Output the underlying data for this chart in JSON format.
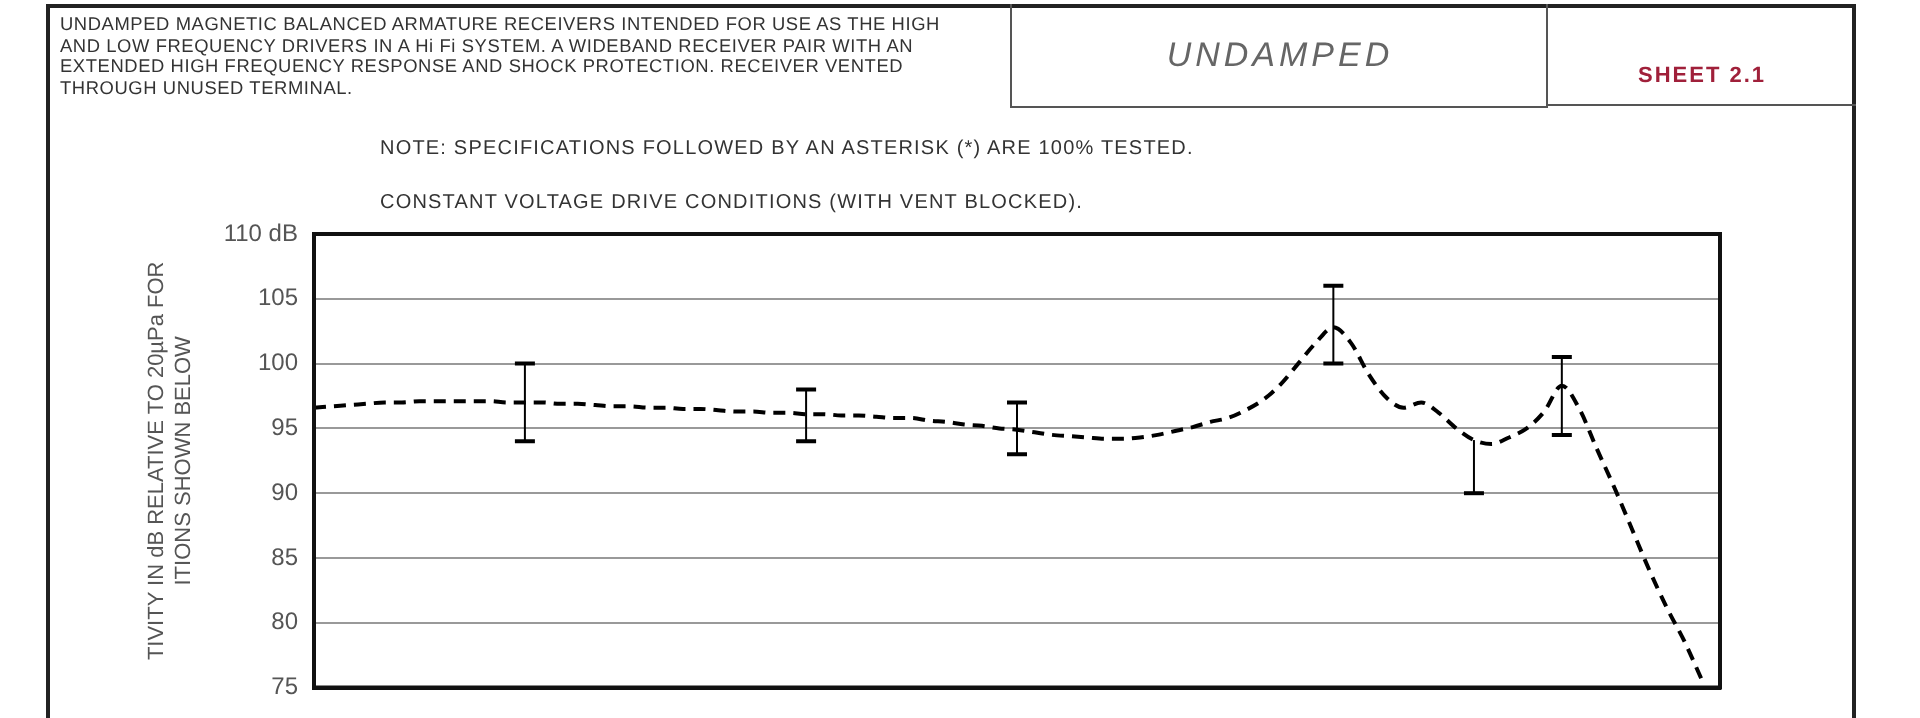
{
  "chart_data": {
    "type": "line",
    "title": "UNDAMPED",
    "subtitle": "SHEET 2.1",
    "annotations": [
      "UNDAMPED MAGNETIC BALANCED ARMATURE RECEIVERS INTENDED FOR USE AS THE HIGH AND LOW FREQUENCY DRIVERS IN A Hi Fi SYSTEM. A WIDEBAND RECEIVER PAIR WITH AN EXTENDED HIGH FREQUENCY RESPONSE AND SHOCK PROTECTION. RECEIVER VENTED THROUGH UNUSED TERMINAL.",
      "NOTE: SPECIFICATIONS FOLLOWED BY AN ASTERISK (*) ARE 100% TESTED.",
      "CONSTANT VOLTAGE DRIVE CONDITIONS (WITH VENT BLOCKED)."
    ],
    "ylabel": "TIVITY IN dB RELATIVE TO 20µPa FOR\nITIONS SHOWN BELOW",
    "categories": [
      null,
      null,
      null,
      null,
      null,
      null,
      null,
      null,
      null,
      null,
      null,
      null,
      null,
      null,
      null,
      null,
      null,
      null,
      null,
      null,
      null,
      null,
      null,
      null,
      null,
      null,
      null,
      null,
      null,
      null,
      null,
      null,
      null,
      null,
      null,
      null,
      null,
      null,
      null,
      null,
      null,
      null,
      null,
      null,
      null,
      null,
      null,
      null,
      null,
      null,
      null,
      null,
      null,
      null,
      null,
      null,
      null,
      null,
      null,
      null,
      null,
      null,
      null,
      null,
      null,
      null,
      null,
      null,
      null,
      null,
      null,
      null,
      null,
      null,
      null,
      null,
      null,
      null,
      null,
      null,
      null
    ],
    "ylim": [
      75,
      110
    ],
    "yticks": [
      75,
      80,
      85,
      90,
      95,
      100,
      105,
      {
        "value": 110,
        "label": "110 dB"
      }
    ],
    "grid": "y",
    "legend": false,
    "tick_labels": "y",
    "marker": "none",
    "line_style": "dashed",
    "series": [
      {
        "color": "#000000",
        "values": [
          96.6,
          96.7,
          96.8,
          96.9,
          97.0,
          97.0,
          97.1,
          97.1,
          97.1,
          97.1,
          97.1,
          97.0,
          97.0,
          97.0,
          96.9,
          96.9,
          96.8,
          96.7,
          96.7,
          96.6,
          96.6,
          96.5,
          96.5,
          96.4,
          96.3,
          96.3,
          96.2,
          96.2,
          96.1,
          96.1,
          96.0,
          96.0,
          95.9,
          95.8,
          95.8,
          95.6,
          95.5,
          95.3,
          95.2,
          95.0,
          94.9,
          94.7,
          94.5,
          94.4,
          94.3,
          94.2,
          94.2,
          94.3,
          94.5,
          94.8,
          95.1,
          95.5,
          95.8,
          96.4,
          97.2,
          98.4,
          100.0,
          101.6,
          102.8,
          101.6,
          99.2,
          97.4,
          96.6,
          97.0,
          96.2,
          95.0,
          94.1,
          93.8,
          94.3,
          95.0,
          96.3,
          98.3,
          96.5,
          93.4,
          90.4,
          87.2,
          84.0,
          81.1,
          78.5,
          75.5,
          null
        ],
        "errors": [
          null,
          null,
          null,
          null,
          null,
          null,
          null,
          null,
          null,
          null,
          null,
          null,
          [
            94,
            100
          ],
          null,
          null,
          null,
          null,
          null,
          null,
          null,
          null,
          null,
          null,
          null,
          null,
          null,
          null,
          null,
          [
            94,
            98
          ],
          null,
          null,
          null,
          null,
          null,
          null,
          null,
          null,
          null,
          null,
          null,
          [
            93,
            97
          ],
          null,
          null,
          null,
          null,
          null,
          null,
          null,
          null,
          null,
          null,
          null,
          null,
          null,
          null,
          null,
          null,
          null,
          [
            100,
            106
          ],
          null,
          null,
          null,
          null,
          null,
          null,
          null,
          [
            90,
            94.1
          ],
          null,
          null,
          null,
          null,
          [
            94.5,
            100.5
          ],
          null,
          null,
          null,
          null,
          null,
          null,
          null,
          null,
          null
        ]
      }
    ]
  }
}
